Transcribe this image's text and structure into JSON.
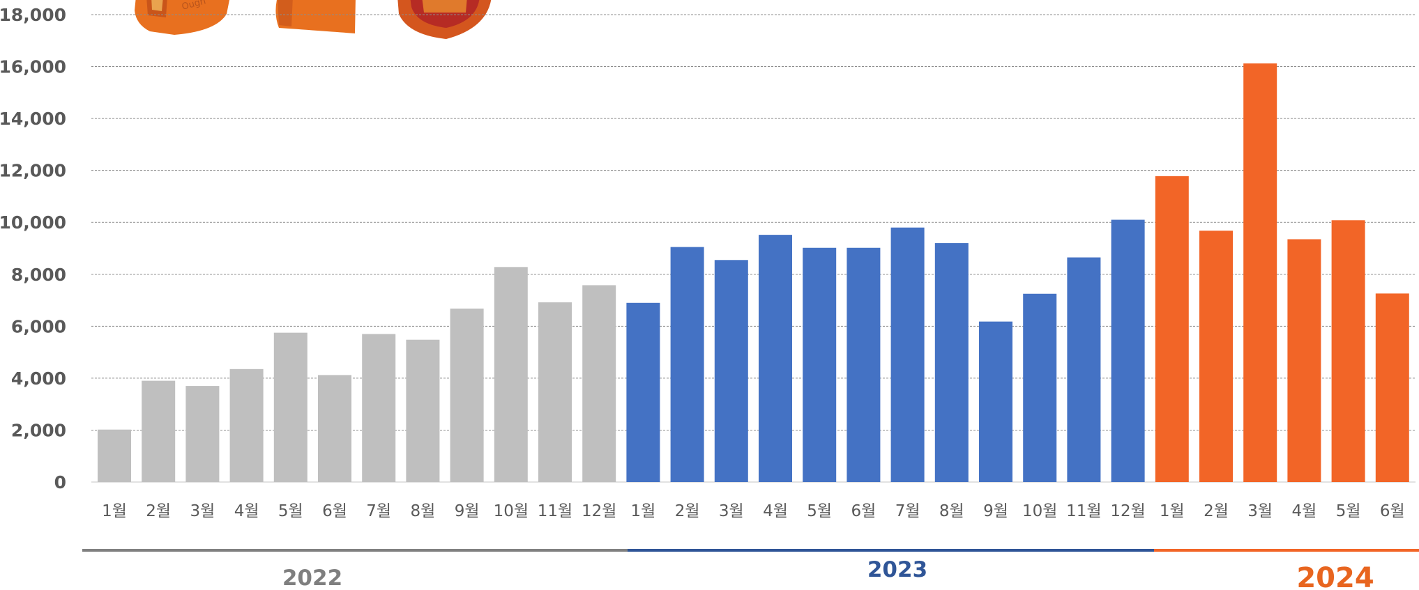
{
  "chart_data": {
    "type": "bar",
    "title": "",
    "xlabel": "",
    "ylabel": "",
    "ylim": [
      0,
      18000
    ],
    "yticks": [
      0,
      2000,
      4000,
      6000,
      8000,
      10000,
      12000,
      14000,
      16000,
      18000
    ],
    "ytick_labels": [
      "0",
      "2,000",
      "4,000",
      "6,000",
      "8,000",
      "10,000",
      "12,000",
      "14,000",
      "16,000",
      "18,000"
    ],
    "grid": true,
    "legend": "none",
    "groups": [
      {
        "name": "2022",
        "color": "#BFBFBF",
        "label_color": "#7F7F7F",
        "line_color": "#808080",
        "categories": [
          "1월",
          "2월",
          "3월",
          "4월",
          "5월",
          "6월",
          "7월",
          "8월",
          "9월",
          "10월",
          "11월",
          "12월"
        ],
        "values": [
          2020,
          3900,
          3700,
          4350,
          5750,
          4120,
          5700,
          5480,
          6680,
          8280,
          6920,
          7580
        ]
      },
      {
        "name": "2023",
        "color": "#4472C4",
        "label_color": "#2F5597",
        "line_color": "#2F5597",
        "categories": [
          "1월",
          "2월",
          "3월",
          "4월",
          "5월",
          "6월",
          "7월",
          "8월",
          "9월",
          "10월",
          "11월",
          "12월"
        ],
        "values": [
          6900,
          9050,
          8550,
          9520,
          9020,
          9020,
          9800,
          9200,
          6180,
          7250,
          8650,
          10100
        ]
      },
      {
        "name": "2024",
        "color": "#F26527",
        "label_color": "#E8651F",
        "line_color": "#F26527",
        "categories": [
          "1월",
          "2월",
          "3월",
          "4월",
          "5월",
          "6월"
        ],
        "values": [
          11780,
          9680,
          16120,
          9350,
          10080,
          7260
        ]
      }
    ]
  },
  "colors": {
    "grid": "#8C8C8C",
    "axis_text": "#595959"
  },
  "decorations": [
    "product-image-left",
    "product-image-middle",
    "product-image-right"
  ]
}
